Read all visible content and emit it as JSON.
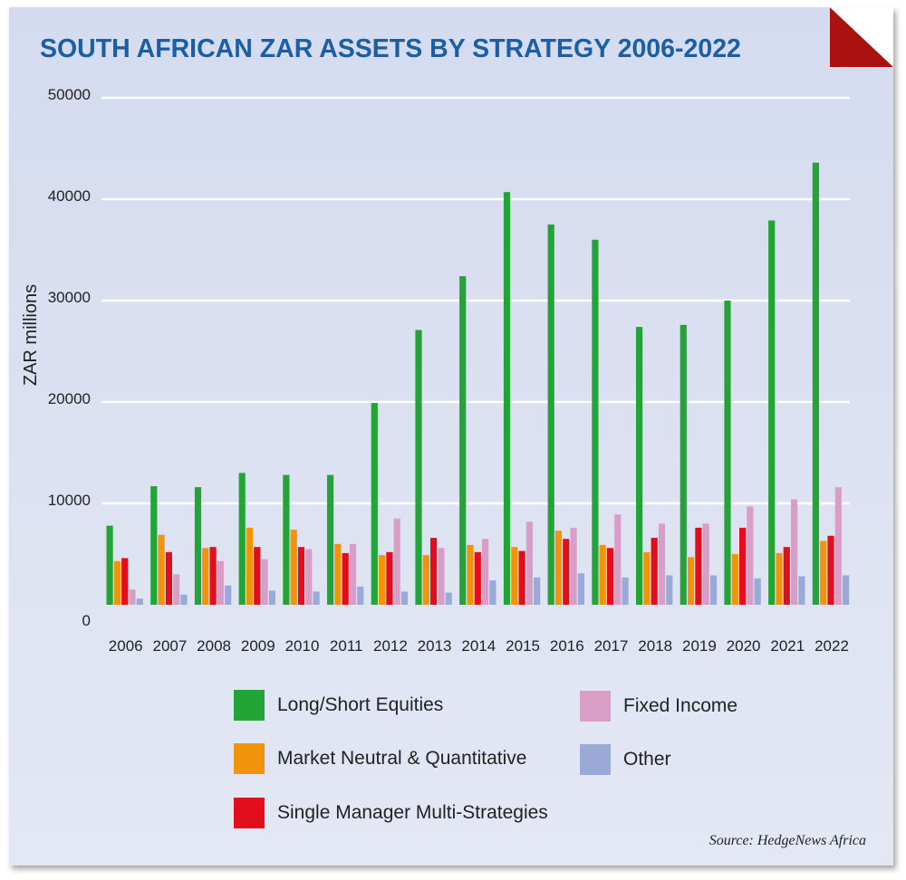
{
  "chart_data": {
    "type": "bar",
    "title": "SOUTH AFRICAN ZAR ASSETS BY STRATEGY 2006-2022",
    "ylabel": "ZAR millions",
    "xlabel": "",
    "ylim": [
      0,
      50000
    ],
    "yticks": [
      "0",
      "10000",
      "20000",
      "30000",
      "40000",
      "50000"
    ],
    "grid": true,
    "legend_position": "bottom",
    "categories": [
      "2006",
      "2007",
      "2008",
      "2009",
      "2010",
      "2011",
      "2012",
      "2013",
      "2014",
      "2015",
      "2016",
      "2017",
      "2018",
      "2019",
      "2020",
      "2021",
      "2022"
    ],
    "series": [
      {
        "name": "Long/Short Equities",
        "color": "#23a436",
        "values": [
          7800,
          11700,
          11600,
          13000,
          12800,
          12800,
          19900,
          27100,
          32400,
          40700,
          37500,
          36000,
          27400,
          27600,
          30000,
          37900,
          43600
        ]
      },
      {
        "name": "Market Neutral & Quantitative",
        "color": "#f2930c",
        "values": [
          4300,
          6900,
          5600,
          7600,
          7400,
          6000,
          4900,
          4900,
          5900,
          5700,
          7300,
          5900,
          5200,
          4700,
          5000,
          5100,
          6300
        ]
      },
      {
        "name": "Single Manager Multi-Strategies",
        "color": "#e30e1b",
        "values": [
          4600,
          5200,
          5700,
          5700,
          5700,
          5100,
          5200,
          6600,
          5200,
          5300,
          6500,
          5600,
          6600,
          7600,
          7600,
          5700,
          6800
        ]
      },
      {
        "name": "Fixed Income",
        "color": "#d99ec8",
        "values": [
          1500,
          3000,
          4300,
          4500,
          5500,
          6000,
          8500,
          5600,
          6500,
          8200,
          7600,
          8900,
          8000,
          8000,
          9700,
          10400,
          11600
        ]
      },
      {
        "name": "Other",
        "color": "#9aaad8",
        "values": [
          600,
          1000,
          1900,
          1400,
          1300,
          1800,
          1300,
          1200,
          2400,
          2700,
          3100,
          2700,
          2900,
          2900,
          2600,
          2800,
          2900
        ]
      }
    ],
    "source": "Source: HedgeNews Africa"
  }
}
